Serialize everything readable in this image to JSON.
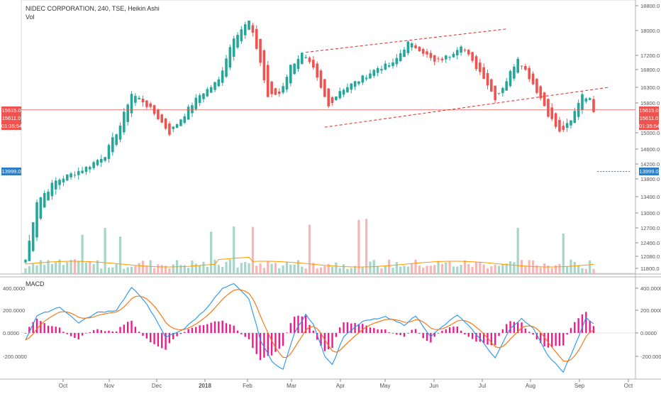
{
  "header": {
    "title": "NIDEC CORPORATION, 240, TSE, Heikin Ashi",
    "volume_label": "Vol",
    "macd_label": "MACD"
  },
  "price_tags_left": {
    "current": "15615.0",
    "open": "15611.0",
    "countdown": "01:35:54",
    "alert": "13999.0"
  },
  "price_tags_right": {
    "current": "15615.0",
    "open": "15611.0",
    "countdown": "01:35:54",
    "alert": "13999.0"
  },
  "colors": {
    "up": "#26a69a",
    "down": "#ef5350",
    "up_light": "#a5d6c8",
    "down_light": "#f7b5b5",
    "macd_line": "#2196f3",
    "signal_line": "#ff6d00",
    "histogram": "#e91e8c",
    "volume_ma": "#ff9800",
    "channel": "#e53935",
    "alert": "#1e88e5"
  },
  "chart_data": {
    "type": "candlestick",
    "symbol": "NIDEC CORPORATION",
    "interval": "240",
    "exchange": "TSE",
    "style": "Heikin Ashi",
    "x_ticks": [
      "Oct",
      "Nov",
      "Dec",
      "2018",
      "Feb",
      "Mar",
      "Apr",
      "May",
      "Jun",
      "Jul",
      "Aug",
      "Sep",
      "Oct"
    ],
    "y_ticks_price": [
      "18800.0",
      "18000.0",
      "17200.0",
      "16800.0",
      "16300.0",
      "15800.0",
      "15000.0",
      "14600.0",
      "14200.0",
      "13800.0",
      "13400.0",
      "13000.0",
      "12700.0",
      "12400.0",
      "12080.0",
      "11800.0"
    ],
    "y_ticks_macd": [
      "400.0000",
      "200.0000",
      "0.0000",
      "-200.0000"
    ],
    "last_price": 15615.0,
    "alert_level": 13999.0,
    "price_keyframes": [
      {
        "x": 0,
        "y": 12000
      },
      {
        "x": 3,
        "y": 13300
      },
      {
        "x": 8,
        "y": 13750
      },
      {
        "x": 16,
        "y": 14100
      },
      {
        "x": 21,
        "y": 14450
      },
      {
        "x": 25,
        "y": 15200
      },
      {
        "x": 28,
        "y": 16100
      },
      {
        "x": 31,
        "y": 15850
      },
      {
        "x": 35,
        "y": 15400
      },
      {
        "x": 38,
        "y": 15000
      },
      {
        "x": 42,
        "y": 15500
      },
      {
        "x": 46,
        "y": 16050
      },
      {
        "x": 51,
        "y": 16500
      },
      {
        "x": 55,
        "y": 17800
      },
      {
        "x": 59,
        "y": 18300
      },
      {
        "x": 62,
        "y": 17000
      },
      {
        "x": 64,
        "y": 16000
      },
      {
        "x": 67,
        "y": 16100
      },
      {
        "x": 70,
        "y": 16900
      },
      {
        "x": 73,
        "y": 17250
      },
      {
        "x": 76,
        "y": 16800
      },
      {
        "x": 80,
        "y": 15700
      },
      {
        "x": 83,
        "y": 16200
      },
      {
        "x": 88,
        "y": 16500
      },
      {
        "x": 93,
        "y": 16850
      },
      {
        "x": 97,
        "y": 16950
      },
      {
        "x": 101,
        "y": 17600
      },
      {
        "x": 104,
        "y": 17400
      },
      {
        "x": 108,
        "y": 17000
      },
      {
        "x": 112,
        "y": 17200
      },
      {
        "x": 115,
        "y": 17550
      },
      {
        "x": 118,
        "y": 17000
      },
      {
        "x": 121,
        "y": 16600
      },
      {
        "x": 124,
        "y": 15950
      },
      {
        "x": 127,
        "y": 16500
      },
      {
        "x": 130,
        "y": 17150
      },
      {
        "x": 134,
        "y": 16400
      },
      {
        "x": 138,
        "y": 15500
      },
      {
        "x": 141,
        "y": 15000
      },
      {
        "x": 144,
        "y": 15300
      },
      {
        "x": 147,
        "y": 16100
      },
      {
        "x": 149,
        "y": 15900
      },
      {
        "x": 150,
        "y": 15615
      }
    ],
    "volume": {
      "base_level": 11950,
      "ma_visible": true
    },
    "macd_keyframes": [
      {
        "x": 0,
        "m": -60
      },
      {
        "x": 3,
        "m": 150
      },
      {
        "x": 9,
        "m": 230
      },
      {
        "x": 14,
        "m": 90
      },
      {
        "x": 19,
        "m": 180
      },
      {
        "x": 24,
        "m": 200
      },
      {
        "x": 28,
        "m": 400
      },
      {
        "x": 32,
        "m": 260
      },
      {
        "x": 37,
        "m": -40
      },
      {
        "x": 42,
        "m": 40
      },
      {
        "x": 47,
        "m": 190
      },
      {
        "x": 52,
        "m": 390
      },
      {
        "x": 55,
        "m": 430
      },
      {
        "x": 59,
        "m": 300
      },
      {
        "x": 62,
        "m": -60
      },
      {
        "x": 65,
        "m": -250
      },
      {
        "x": 68,
        "m": -320
      },
      {
        "x": 71,
        "m": 0
      },
      {
        "x": 74,
        "m": 160
      },
      {
        "x": 76,
        "m": 80
      },
      {
        "x": 79,
        "m": -200
      },
      {
        "x": 81,
        "m": -280
      },
      {
        "x": 84,
        "m": -30
      },
      {
        "x": 89,
        "m": 100
      },
      {
        "x": 95,
        "m": 140
      },
      {
        "x": 100,
        "m": 70
      },
      {
        "x": 103,
        "m": 150
      },
      {
        "x": 107,
        "m": -30
      },
      {
        "x": 111,
        "m": 80
      },
      {
        "x": 114,
        "m": 160
      },
      {
        "x": 117,
        "m": 60
      },
      {
        "x": 120,
        "m": -50
      },
      {
        "x": 124,
        "m": -220
      },
      {
        "x": 128,
        "m": 40
      },
      {
        "x": 131,
        "m": 130
      },
      {
        "x": 134,
        "m": 40
      },
      {
        "x": 138,
        "m": -200
      },
      {
        "x": 142,
        "m": -340
      },
      {
        "x": 145,
        "m": -120
      },
      {
        "x": 148,
        "m": 140
      },
      {
        "x": 150,
        "m": 80
      }
    ],
    "trendlines": [
      {
        "name": "channel-upper",
        "style": "dashed",
        "x1": 74,
        "y1": 17300,
        "x2": 127,
        "y2": 18050
      },
      {
        "name": "channel-lower",
        "style": "dashed",
        "x1": 79,
        "y1": 15150,
        "x2": 154,
        "y2": 16300
      }
    ],
    "alert_line": {
      "x1": 151,
      "x2": 160,
      "y": 13999,
      "style": "dotted"
    }
  }
}
